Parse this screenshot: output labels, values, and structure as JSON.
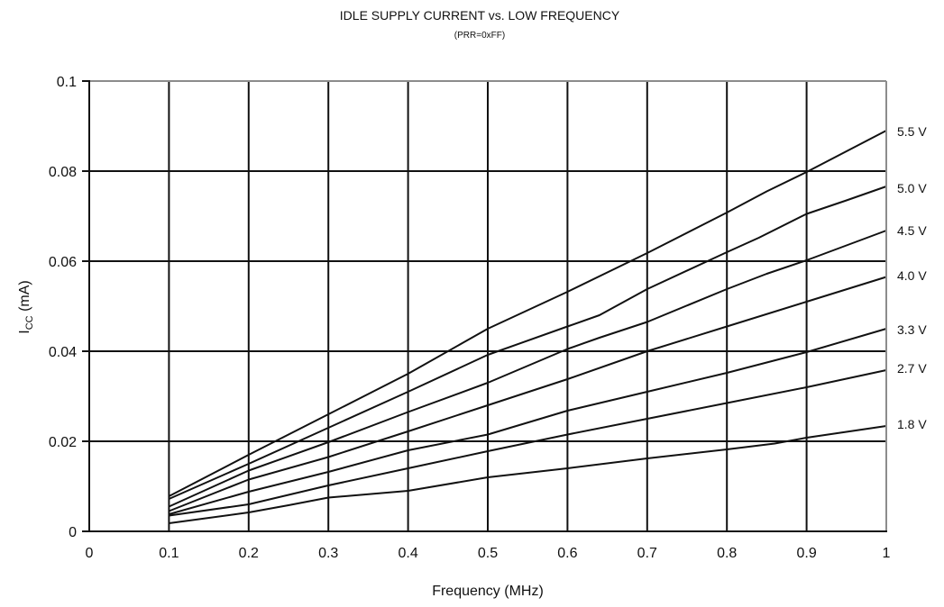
{
  "chart_data": {
    "type": "line",
    "title": "IDLE SUPPLY CURRENT vs. LOW FREQUENCY",
    "subtitle": "(PRR=0xFF)",
    "xlabel": "Frequency (MHz)",
    "ylabel_main": "I",
    "ylabel_sub": "CC",
    "ylabel_unit": " (mA)",
    "xlim": [
      0,
      1
    ],
    "ylim": [
      0,
      0.1
    ],
    "x_ticks": [
      "0",
      "0.1",
      "0.2",
      "0.3",
      "0.4",
      "0.5",
      "0.6",
      "0.7",
      "0.8",
      "0.9",
      "1"
    ],
    "y_ticks": [
      "0",
      "0.02",
      "0.04",
      "0.06",
      "0.08",
      "0.1"
    ],
    "grid": true,
    "legend": "series labels at right end of each line",
    "line_color": "#111111",
    "grid_color": "#111111",
    "series": [
      {
        "name": "5.5 V",
        "x": [
          0.1,
          0.2,
          0.3,
          0.4,
          0.5,
          0.6,
          0.7,
          0.8,
          0.85,
          0.9,
          1.0
        ],
        "y": [
          0.0078,
          0.017,
          0.026,
          0.035,
          0.045,
          0.0532,
          0.0618,
          0.0708,
          0.0755,
          0.0798,
          0.089
        ]
      },
      {
        "name": "5.0 V",
        "x": [
          0.1,
          0.2,
          0.3,
          0.4,
          0.5,
          0.6,
          0.64,
          0.7,
          0.8,
          0.84,
          0.9,
          0.95,
          1.0
        ],
        "y": [
          0.0072,
          0.015,
          0.023,
          0.031,
          0.0392,
          0.0455,
          0.048,
          0.0538,
          0.062,
          0.0652,
          0.0705,
          0.0735,
          0.0766
        ]
      },
      {
        "name": "4.5 V",
        "x": [
          0.1,
          0.2,
          0.3,
          0.4,
          0.5,
          0.6,
          0.64,
          0.7,
          0.8,
          0.85,
          0.9,
          1.0
        ],
        "y": [
          0.0055,
          0.0135,
          0.0198,
          0.0265,
          0.033,
          0.0405,
          0.043,
          0.0465,
          0.0538,
          0.0572,
          0.0602,
          0.0668
        ]
      },
      {
        "name": "4.0 V",
        "x": [
          0.1,
          0.2,
          0.3,
          0.4,
          0.5,
          0.6,
          0.7,
          0.8,
          0.9,
          1.0
        ],
        "y": [
          0.0045,
          0.0115,
          0.0165,
          0.0222,
          0.028,
          0.0338,
          0.04,
          0.0455,
          0.051,
          0.0565
        ]
      },
      {
        "name": "3.3 V",
        "x": [
          0.1,
          0.2,
          0.3,
          0.4,
          0.5,
          0.6,
          0.7,
          0.8,
          0.9,
          1.0
        ],
        "y": [
          0.0038,
          0.0088,
          0.0132,
          0.018,
          0.0215,
          0.0268,
          0.031,
          0.0352,
          0.0398,
          0.045
        ]
      },
      {
        "name": "2.7 V",
        "x": [
          0.1,
          0.2,
          0.3,
          0.4,
          0.5,
          0.6,
          0.7,
          0.8,
          0.9,
          1.0
        ],
        "y": [
          0.0035,
          0.006,
          0.0102,
          0.014,
          0.0178,
          0.0215,
          0.025,
          0.0285,
          0.032,
          0.0358
        ]
      },
      {
        "name": "1.8 V",
        "x": [
          0.1,
          0.2,
          0.25,
          0.3,
          0.4,
          0.5,
          0.6,
          0.7,
          0.8,
          0.86,
          0.9,
          1.0
        ],
        "y": [
          0.0018,
          0.0042,
          0.0058,
          0.0075,
          0.009,
          0.012,
          0.014,
          0.0162,
          0.0182,
          0.0195,
          0.0208,
          0.0234
        ]
      }
    ]
  }
}
